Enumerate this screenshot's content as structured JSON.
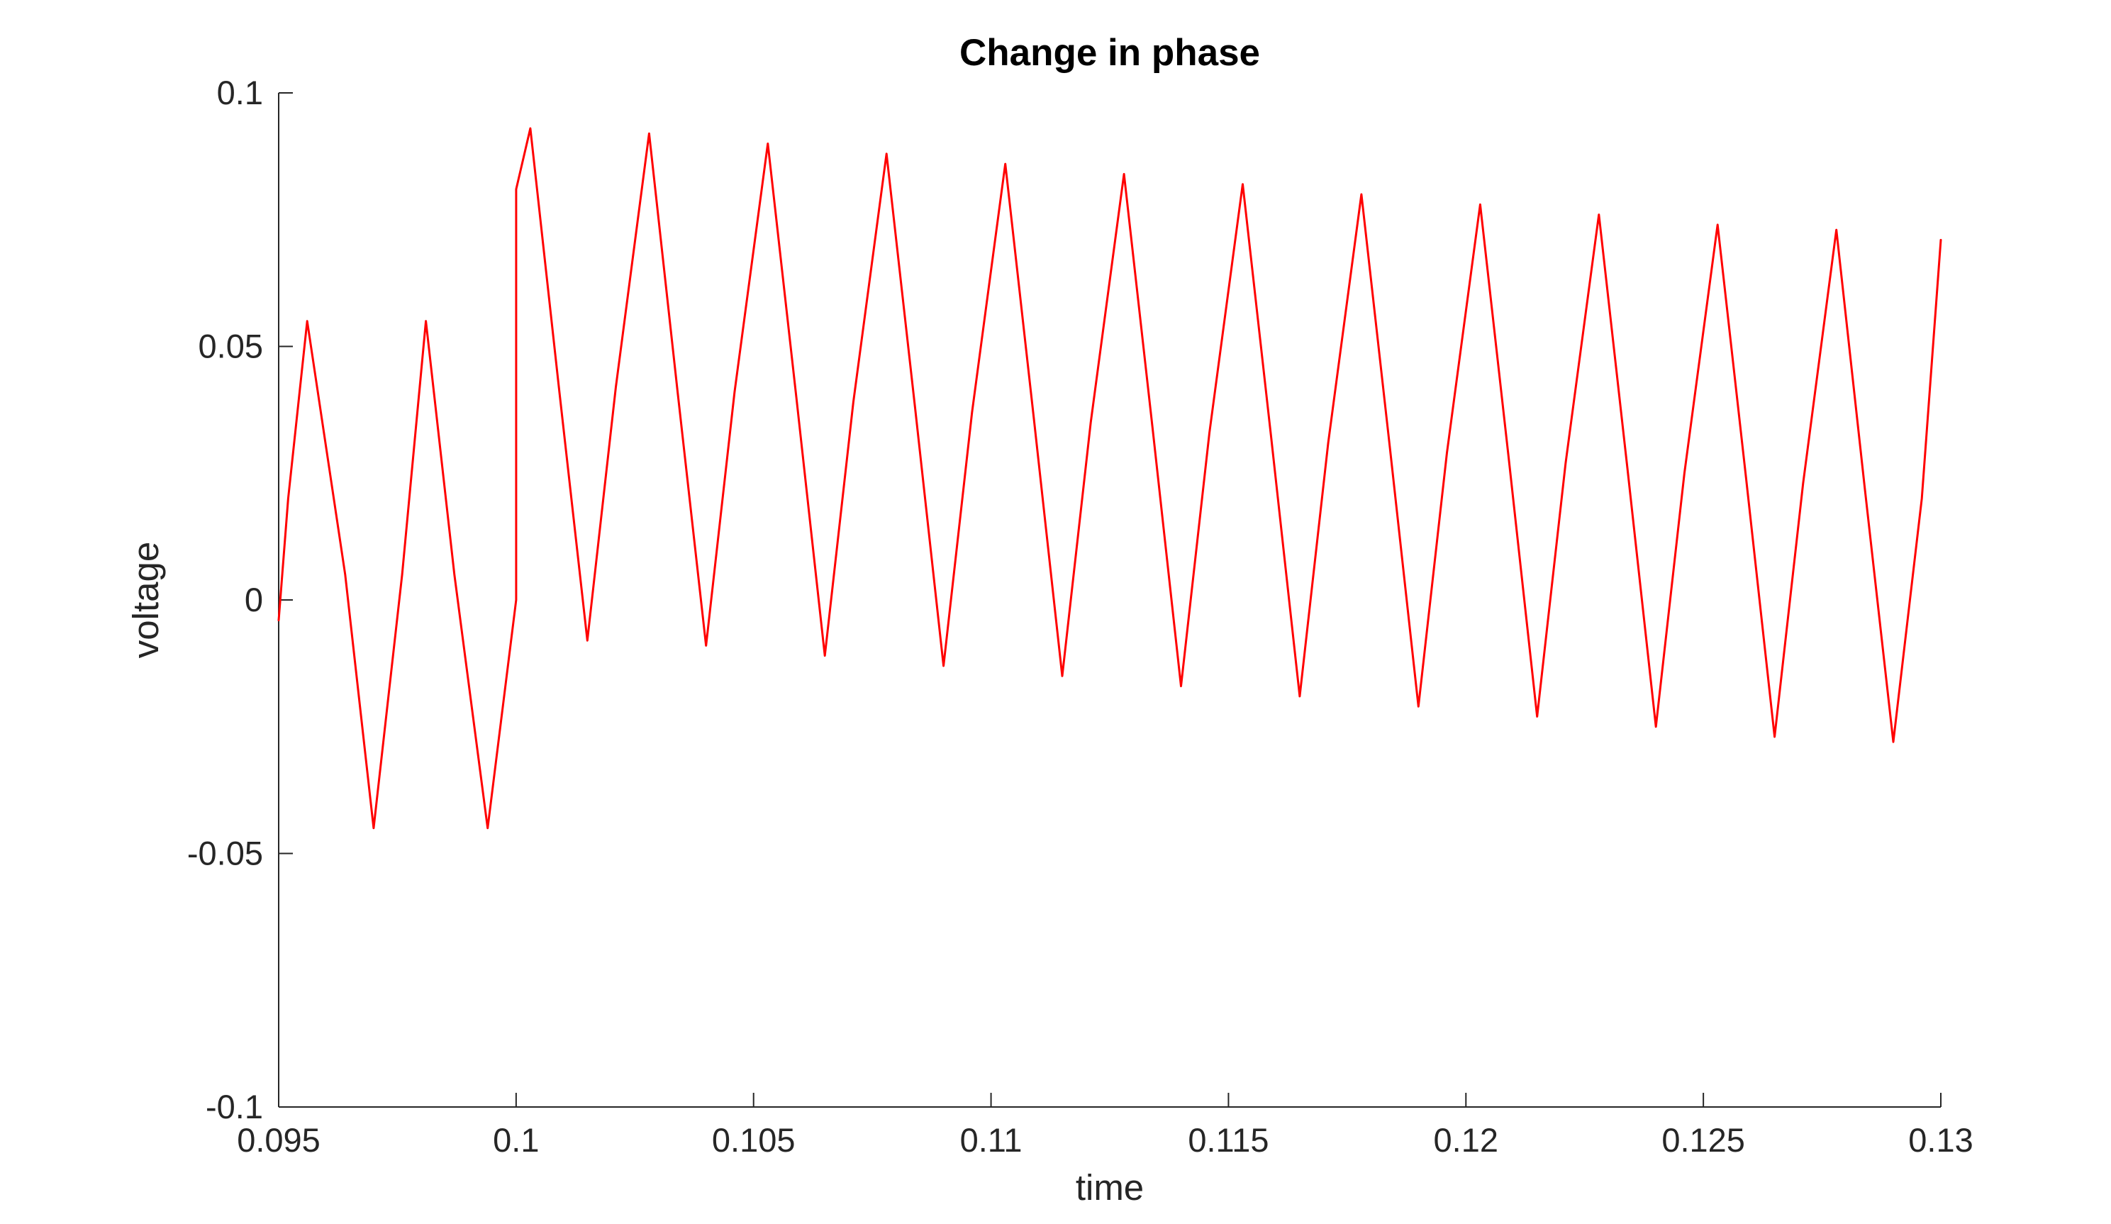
{
  "chart_data": {
    "type": "line",
    "title": "Change in phase",
    "xlabel": "time",
    "ylabel": "voltage",
    "xlim": [
      0.095,
      0.13
    ],
    "ylim": [
      -0.1,
      0.1
    ],
    "x_ticks": [
      0.095,
      0.1,
      0.105,
      0.11,
      0.115,
      0.12,
      0.125,
      0.13
    ],
    "x_tick_labels": [
      "0.095",
      "0.1",
      "0.105",
      "0.11",
      "0.115",
      "0.12",
      "0.125",
      "0.13"
    ],
    "y_ticks": [
      -0.1,
      -0.05,
      0,
      0.05,
      0.1
    ],
    "y_tick_labels": [
      "-0.1",
      "-0.05",
      "0",
      "0.05",
      "0.1"
    ],
    "grid": false,
    "legend": "none",
    "series": [
      {
        "color": "#ff0000",
        "x": [
          0.095,
          0.0952,
          0.0956,
          0.0964,
          0.097,
          0.0976,
          0.0981,
          0.0987,
          0.0994,
          0.1,
          0.1,
          0.1003,
          0.1009,
          0.1015,
          0.1021,
          0.1028,
          0.1034,
          0.104,
          0.1046,
          0.1053,
          0.1059,
          0.1065,
          0.1071,
          0.1078,
          0.1084,
          0.109,
          0.1096,
          0.1103,
          0.1109,
          0.1115,
          0.1121,
          0.1128,
          0.1134,
          0.114,
          0.1146,
          0.1153,
          0.1159,
          0.1165,
          0.1171,
          0.1178,
          0.1184,
          0.119,
          0.1196,
          0.1203,
          0.1209,
          0.1215,
          0.1221,
          0.1228,
          0.1234,
          0.124,
          0.1246,
          0.1253,
          0.1259,
          0.1265,
          0.1271,
          0.1278,
          0.1284,
          0.129,
          0.1296,
          0.13
        ],
        "y": [
          -0.004,
          0.02,
          0.055,
          0.005,
          -0.045,
          0.005,
          0.055,
          0.005,
          -0.045,
          0.0,
          0.081,
          0.093,
          0.042,
          -0.008,
          0.042,
          0.092,
          0.041,
          -0.009,
          0.041,
          0.09,
          0.04,
          -0.011,
          0.039,
          0.088,
          0.038,
          -0.013,
          0.037,
          0.086,
          0.036,
          -0.015,
          0.035,
          0.084,
          0.034,
          -0.017,
          0.033,
          0.082,
          0.032,
          -0.019,
          0.031,
          0.08,
          0.03,
          -0.021,
          0.029,
          0.078,
          0.028,
          -0.023,
          0.027,
          0.076,
          0.026,
          -0.025,
          0.025,
          0.074,
          0.024,
          -0.027,
          0.023,
          0.073,
          0.022,
          -0.028,
          0.02,
          0.071
        ]
      }
    ]
  }
}
